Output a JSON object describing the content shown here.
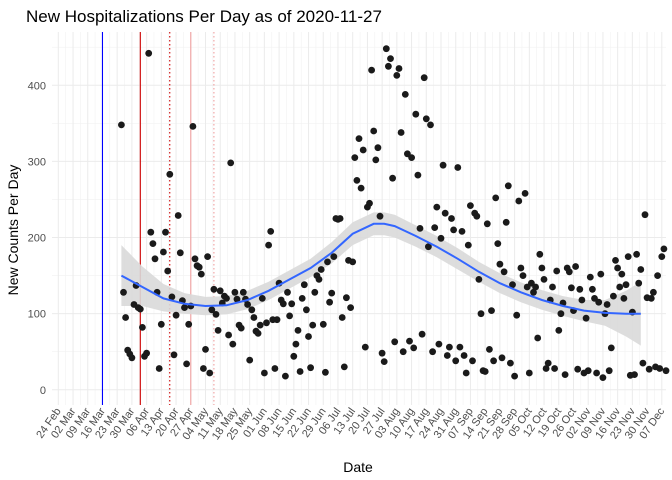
{
  "chart_data": {
    "type": "scatter",
    "title": "New Hospitalizations Per Day as of 2020-11-27",
    "xlabel": "Date",
    "ylabel": "New Counts Per Day",
    "x_domain_days": [
      -3,
      289
    ],
    "ylim": [
      -20,
      470
    ],
    "y_ticks": [
      0,
      100,
      200,
      300,
      400
    ],
    "x_ticks": [
      {
        "day": 0,
        "label": "24 Feb"
      },
      {
        "day": 7,
        "label": "02 Mar"
      },
      {
        "day": 14,
        "label": "09 Mar"
      },
      {
        "day": 21,
        "label": "16 Mar"
      },
      {
        "day": 28,
        "label": "23 Mar"
      },
      {
        "day": 35,
        "label": "30 Mar"
      },
      {
        "day": 42,
        "label": "06 Apr"
      },
      {
        "day": 49,
        "label": "13 Apr"
      },
      {
        "day": 56,
        "label": "20 Apr"
      },
      {
        "day": 63,
        "label": "27 Apr"
      },
      {
        "day": 70,
        "label": "04 May"
      },
      {
        "day": 77,
        "label": "11 May"
      },
      {
        "day": 84,
        "label": "18 May"
      },
      {
        "day": 91,
        "label": "25 May"
      },
      {
        "day": 98,
        "label": "01 Jun"
      },
      {
        "day": 105,
        "label": "08 Jun"
      },
      {
        "day": 112,
        "label": "15 Jun"
      },
      {
        "day": 119,
        "label": "22 Jun"
      },
      {
        "day": 126,
        "label": "29 Jun"
      },
      {
        "day": 133,
        "label": "06 Jul"
      },
      {
        "day": 140,
        "label": "13 Jul"
      },
      {
        "day": 147,
        "label": "20 Jul"
      },
      {
        "day": 154,
        "label": "27 Jul"
      },
      {
        "day": 161,
        "label": "03 Aug"
      },
      {
        "day": 168,
        "label": "10 Aug"
      },
      {
        "day": 175,
        "label": "17 Aug"
      },
      {
        "day": 182,
        "label": "24 Aug"
      },
      {
        "day": 189,
        "label": "31 Aug"
      },
      {
        "day": 196,
        "label": "07 Sep"
      },
      {
        "day": 203,
        "label": "14 Sep"
      },
      {
        "day": 210,
        "label": "21 Sep"
      },
      {
        "day": 217,
        "label": "28 Sep"
      },
      {
        "day": 224,
        "label": "05 Oct"
      },
      {
        "day": 231,
        "label": "12 Oct"
      },
      {
        "day": 238,
        "label": "19 Oct"
      },
      {
        "day": 245,
        "label": "26 Oct"
      },
      {
        "day": 252,
        "label": "02 Nov"
      },
      {
        "day": 259,
        "label": "09 Nov"
      },
      {
        "day": 266,
        "label": "16 Nov"
      },
      {
        "day": 273,
        "label": "23 Nov"
      },
      {
        "day": 280,
        "label": "30 Nov"
      },
      {
        "day": 287,
        "label": "07 Dec"
      }
    ],
    "vlines": [
      {
        "day": 21,
        "color": "#0000ff",
        "style": "solid"
      },
      {
        "day": 39,
        "color": "#cc0000",
        "style": "solid"
      },
      {
        "day": 53,
        "color": "#cc0000",
        "style": "dotted"
      },
      {
        "day": 63,
        "color": "#f0a0a0",
        "style": "solid"
      },
      {
        "day": 74,
        "color": "#f0a0a0",
        "style": "dotted"
      }
    ],
    "point_color": "#1a1a1a",
    "smooth_color": "#3366ff",
    "band_color": "#d9d9d9",
    "smooth": {
      "x": [
        30,
        40,
        50,
        60,
        70,
        80,
        90,
        100,
        110,
        120,
        130,
        140,
        150,
        155,
        160,
        170,
        180,
        190,
        200,
        210,
        220,
        230,
        240,
        250,
        260,
        270,
        277
      ],
      "y": [
        150,
        135,
        120,
        113,
        110,
        111,
        118,
        130,
        145,
        160,
        180,
        205,
        218,
        218,
        215,
        202,
        188,
        172,
        155,
        140,
        128,
        118,
        110,
        104,
        101,
        100,
        100
      ],
      "ymin": [
        110,
        110,
        103,
        100,
        98,
        99,
        106,
        118,
        133,
        148,
        166,
        190,
        203,
        203,
        200,
        188,
        174,
        158,
        142,
        127,
        115,
        105,
        97,
        90,
        84,
        70,
        58
      ],
      "ymax": [
        190,
        162,
        139,
        127,
        122,
        123,
        130,
        142,
        157,
        172,
        194,
        220,
        233,
        233,
        230,
        216,
        202,
        186,
        168,
        153,
        141,
        131,
        123,
        118,
        118,
        130,
        142
      ]
    },
    "points": [
      [
        30,
        348
      ],
      [
        31,
        128
      ],
      [
        32,
        95
      ],
      [
        33,
        52
      ],
      [
        34,
        47
      ],
      [
        35,
        42
      ],
      [
        36,
        112
      ],
      [
        37,
        137
      ],
      [
        38,
        108
      ],
      [
        39,
        106
      ],
      [
        40,
        82
      ],
      [
        41,
        44
      ],
      [
        42,
        48
      ],
      [
        43,
        442
      ],
      [
        44,
        207
      ],
      [
        45,
        192
      ],
      [
        46,
        172
      ],
      [
        47,
        128
      ],
      [
        48,
        28
      ],
      [
        49,
        86
      ],
      [
        50,
        181
      ],
      [
        51,
        207
      ],
      [
        52,
        156
      ],
      [
        53,
        283
      ],
      [
        54,
        122
      ],
      [
        55,
        46
      ],
      [
        56,
        98
      ],
      [
        57,
        229
      ],
      [
        58,
        180
      ],
      [
        59,
        117
      ],
      [
        60,
        108
      ],
      [
        61,
        34
      ],
      [
        62,
        86
      ],
      [
        63,
        110
      ],
      [
        64,
        346
      ],
      [
        65,
        172
      ],
      [
        66,
        163
      ],
      [
        67,
        161
      ],
      [
        68,
        152
      ],
      [
        69,
        28
      ],
      [
        70,
        53
      ],
      [
        71,
        175
      ],
      [
        72,
        22
      ],
      [
        73,
        105
      ],
      [
        74,
        132
      ],
      [
        75,
        99
      ],
      [
        76,
        78
      ],
      [
        77,
        130
      ],
      [
        78,
        114
      ],
      [
        79,
        123
      ],
      [
        80,
        120
      ],
      [
        81,
        72
      ],
      [
        82,
        298
      ],
      [
        83,
        60
      ],
      [
        84,
        128
      ],
      [
        85,
        119
      ],
      [
        86,
        85
      ],
      [
        87,
        81
      ],
      [
        88,
        128
      ],
      [
        89,
        119
      ],
      [
        90,
        112
      ],
      [
        91,
        39
      ],
      [
        92,
        105
      ],
      [
        93,
        95
      ],
      [
        94,
        77
      ],
      [
        95,
        74
      ],
      [
        96,
        85
      ],
      [
        97,
        120
      ],
      [
        98,
        22
      ],
      [
        99,
        88
      ],
      [
        100,
        190
      ],
      [
        101,
        208
      ],
      [
        102,
        92
      ],
      [
        103,
        28
      ],
      [
        104,
        92
      ],
      [
        105,
        140
      ],
      [
        106,
        118
      ],
      [
        107,
        113
      ],
      [
        108,
        18
      ],
      [
        109,
        128
      ],
      [
        110,
        97
      ],
      [
        111,
        113
      ],
      [
        112,
        44
      ],
      [
        113,
        60
      ],
      [
        114,
        78
      ],
      [
        115,
        24
      ],
      [
        116,
        120
      ],
      [
        117,
        138
      ],
      [
        118,
        105
      ],
      [
        119,
        70
      ],
      [
        120,
        29
      ],
      [
        121,
        85
      ],
      [
        122,
        128
      ],
      [
        123,
        150
      ],
      [
        124,
        145
      ],
      [
        125,
        158
      ],
      [
        126,
        86
      ],
      [
        127,
        23
      ],
      [
        128,
        168
      ],
      [
        129,
        115
      ],
      [
        130,
        127
      ],
      [
        131,
        175
      ],
      [
        132,
        225
      ],
      [
        133,
        224
      ],
      [
        134,
        225
      ],
      [
        135,
        95
      ],
      [
        136,
        30
      ],
      [
        137,
        121
      ],
      [
        138,
        170
      ],
      [
        139,
        108
      ],
      [
        140,
        168
      ],
      [
        141,
        305
      ],
      [
        142,
        275
      ],
      [
        143,
        330
      ],
      [
        144,
        265
      ],
      [
        145,
        315
      ],
      [
        146,
        56
      ],
      [
        147,
        240
      ],
      [
        148,
        245
      ],
      [
        149,
        420
      ],
      [
        150,
        340
      ],
      [
        151,
        302
      ],
      [
        152,
        318
      ],
      [
        153,
        228
      ],
      [
        154,
        48
      ],
      [
        155,
        37
      ],
      [
        156,
        448
      ],
      [
        157,
        425
      ],
      [
        158,
        435
      ],
      [
        159,
        278
      ],
      [
        160,
        63
      ],
      [
        161,
        413
      ],
      [
        162,
        422
      ],
      [
        163,
        338
      ],
      [
        164,
        50
      ],
      [
        165,
        388
      ],
      [
        166,
        310
      ],
      [
        167,
        64
      ],
      [
        168,
        305
      ],
      [
        169,
        55
      ],
      [
        170,
        362
      ],
      [
        171,
        282
      ],
      [
        172,
        212
      ],
      [
        173,
        73
      ],
      [
        174,
        410
      ],
      [
        175,
        356
      ],
      [
        176,
        188
      ],
      [
        177,
        348
      ],
      [
        178,
        50
      ],
      [
        179,
        213
      ],
      [
        180,
        240
      ],
      [
        181,
        60
      ],
      [
        182,
        199
      ],
      [
        183,
        295
      ],
      [
        184,
        232
      ],
      [
        185,
        45
      ],
      [
        186,
        56
      ],
      [
        187,
        225
      ],
      [
        188,
        210
      ],
      [
        189,
        38
      ],
      [
        190,
        292
      ],
      [
        191,
        56
      ],
      [
        192,
        208
      ],
      [
        193,
        45
      ],
      [
        194,
        22
      ],
      [
        195,
        190
      ],
      [
        196,
        242
      ],
      [
        197,
        38
      ],
      [
        198,
        232
      ],
      [
        199,
        228
      ],
      [
        200,
        145
      ],
      [
        201,
        100
      ],
      [
        202,
        25
      ],
      [
        203,
        24
      ],
      [
        204,
        218
      ],
      [
        205,
        53
      ],
      [
        206,
        104
      ],
      [
        207,
        38
      ],
      [
        208,
        252
      ],
      [
        209,
        192
      ],
      [
        210,
        165
      ],
      [
        211,
        42
      ],
      [
        212,
        155
      ],
      [
        213,
        220
      ],
      [
        214,
        268
      ],
      [
        215,
        35
      ],
      [
        216,
        138
      ],
      [
        217,
        18
      ],
      [
        218,
        98
      ],
      [
        219,
        248
      ],
      [
        220,
        160
      ],
      [
        221,
        150
      ],
      [
        222,
        258
      ],
      [
        223,
        135
      ],
      [
        224,
        22
      ],
      [
        225,
        140
      ],
      [
        226,
        128
      ],
      [
        227,
        135
      ],
      [
        228,
        68
      ],
      [
        229,
        178
      ],
      [
        230,
        160
      ],
      [
        231,
        145
      ],
      [
        232,
        28
      ],
      [
        233,
        35
      ],
      [
        234,
        118
      ],
      [
        235,
        135
      ],
      [
        236,
        28
      ],
      [
        237,
        156
      ],
      [
        238,
        78
      ],
      [
        239,
        100
      ],
      [
        240,
        114
      ],
      [
        241,
        20
      ],
      [
        242,
        160
      ],
      [
        243,
        155
      ],
      [
        244,
        134
      ],
      [
        245,
        104
      ],
      [
        246,
        162
      ],
      [
        247,
        27
      ],
      [
        248,
        132
      ],
      [
        249,
        118
      ],
      [
        250,
        22
      ],
      [
        251,
        94
      ],
      [
        252,
        25
      ],
      [
        253,
        148
      ],
      [
        254,
        132
      ],
      [
        255,
        120
      ],
      [
        256,
        22
      ],
      [
        257,
        115
      ],
      [
        258,
        152
      ],
      [
        259,
        16
      ],
      [
        260,
        100
      ],
      [
        261,
        112
      ],
      [
        262,
        25
      ],
      [
        263,
        55
      ],
      [
        264,
        123
      ],
      [
        265,
        170
      ],
      [
        266,
        160
      ],
      [
        267,
        135
      ],
      [
        268,
        152
      ],
      [
        269,
        120
      ],
      [
        270,
        138
      ],
      [
        271,
        175
      ],
      [
        272,
        19
      ],
      [
        273,
        102
      ],
      [
        274,
        20
      ],
      [
        275,
        178
      ],
      [
        276,
        140
      ],
      [
        277,
        158
      ],
      [
        278,
        35
      ],
      [
        279,
        230
      ],
      [
        280,
        121
      ],
      [
        281,
        27
      ],
      [
        282,
        120
      ],
      [
        283,
        128
      ],
      [
        284,
        30
      ],
      [
        285,
        150
      ],
      [
        286,
        28
      ],
      [
        287,
        175
      ],
      [
        288,
        185
      ],
      [
        289,
        25
      ]
    ]
  }
}
